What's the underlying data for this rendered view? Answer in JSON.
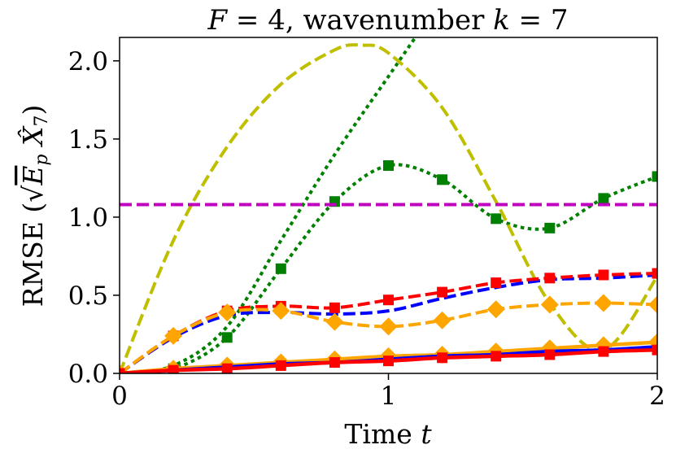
{
  "chart_data": {
    "type": "line",
    "title": "F = 4, wavenumber k = 7",
    "xlabel": "Time t",
    "ylabel": "RMSE (√(E_p X̂_7))",
    "xlim": [
      0,
      2
    ],
    "ylim": [
      0,
      2.15
    ],
    "xticks": [
      "0",
      "1",
      "2"
    ],
    "yticks": [
      "0.0",
      "0.5",
      "1.0",
      "1.5",
      "2.0"
    ],
    "series": [
      {
        "name": "green dotted (markers)",
        "color": "#008000",
        "style": "dotted",
        "marker": "square",
        "x": [
          0,
          0.2,
          0.4,
          0.6,
          0.8,
          1.0,
          1.2,
          1.4,
          1.6,
          1.8,
          2.0
        ],
        "y": [
          0.0,
          0.03,
          0.23,
          0.67,
          1.1,
          1.33,
          1.24,
          0.99,
          0.93,
          1.12,
          1.26
        ]
      },
      {
        "name": "green dotted (no markers)",
        "color": "#008000",
        "style": "dotted",
        "marker": "none",
        "x": [
          0,
          0.2,
          0.4,
          0.6,
          0.8,
          1.0,
          1.1
        ],
        "y": [
          0.0,
          0.05,
          0.3,
          0.85,
          1.4,
          1.9,
          2.15
        ]
      },
      {
        "name": "olive dashed",
        "color": "#bfbf00",
        "style": "dashed",
        "marker": "none",
        "x": [
          0,
          0.2,
          0.4,
          0.6,
          0.8,
          0.9,
          1.0,
          1.2,
          1.4,
          1.6,
          1.8,
          2.0
        ],
        "y": [
          0.0,
          0.85,
          1.45,
          1.85,
          2.07,
          2.1,
          2.05,
          1.7,
          1.1,
          0.45,
          0.15,
          0.62
        ]
      },
      {
        "name": "magenta dashed",
        "color": "#bf00bf",
        "style": "dashed",
        "marker": "none",
        "x": [
          0,
          2.0
        ],
        "y": [
          1.08,
          1.08
        ]
      },
      {
        "name": "blue dashed",
        "color": "#0000ff",
        "style": "dashed",
        "marker": "none",
        "x": [
          0,
          0.2,
          0.4,
          0.6,
          0.8,
          1.0,
          1.2,
          1.4,
          1.6,
          1.8,
          2.0
        ],
        "y": [
          0.0,
          0.23,
          0.37,
          0.39,
          0.38,
          0.4,
          0.48,
          0.55,
          0.6,
          0.61,
          0.63
        ]
      },
      {
        "name": "red dashed",
        "color": "#ff0000",
        "style": "dashed",
        "marker": "square",
        "x": [
          0,
          0.2,
          0.4,
          0.6,
          0.8,
          1.0,
          1.2,
          1.4,
          1.6,
          1.8,
          2.0
        ],
        "y": [
          0.0,
          0.24,
          0.4,
          0.43,
          0.42,
          0.47,
          0.52,
          0.58,
          0.61,
          0.63,
          0.64
        ]
      },
      {
        "name": "orange dashed",
        "color": "#ffa500",
        "style": "dashed",
        "marker": "diamond",
        "x": [
          0,
          0.2,
          0.4,
          0.6,
          0.8,
          1.0,
          1.2,
          1.4,
          1.6,
          1.8,
          2.0
        ],
        "y": [
          0.0,
          0.24,
          0.39,
          0.4,
          0.33,
          0.3,
          0.34,
          0.41,
          0.44,
          0.45,
          0.44
        ]
      },
      {
        "name": "orange solid",
        "color": "#ffa500",
        "style": "solid",
        "marker": "diamond",
        "x": [
          0,
          0.2,
          0.4,
          0.6,
          0.8,
          1.0,
          1.2,
          1.4,
          1.6,
          1.8,
          2.0
        ],
        "y": [
          0.0,
          0.03,
          0.05,
          0.07,
          0.09,
          0.11,
          0.12,
          0.14,
          0.16,
          0.18,
          0.2
        ]
      },
      {
        "name": "blue solid",
        "color": "#0000ff",
        "style": "solid",
        "marker": "none",
        "x": [
          0,
          0.2,
          0.4,
          0.6,
          0.8,
          1.0,
          1.2,
          1.4,
          1.6,
          1.8,
          2.0
        ],
        "y": [
          0.0,
          0.02,
          0.04,
          0.06,
          0.07,
          0.09,
          0.11,
          0.12,
          0.14,
          0.15,
          0.17
        ]
      },
      {
        "name": "red solid",
        "color": "#ff0000",
        "style": "solid",
        "marker": "square",
        "x": [
          0,
          0.2,
          0.4,
          0.6,
          0.8,
          1.0,
          1.2,
          1.4,
          1.6,
          1.8,
          2.0
        ],
        "y": [
          0.0,
          0.02,
          0.03,
          0.05,
          0.07,
          0.08,
          0.1,
          0.11,
          0.12,
          0.14,
          0.15
        ]
      }
    ]
  }
}
